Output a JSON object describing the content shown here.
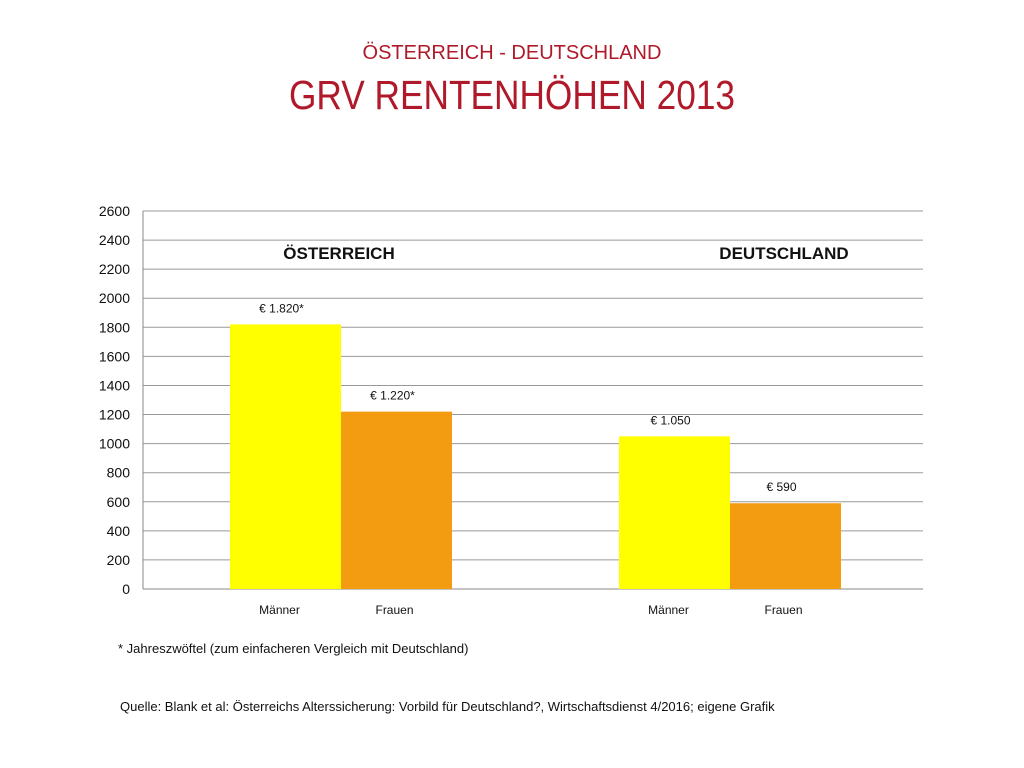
{
  "header": {
    "subtitle": "ÖSTERREICH - DEUTSCHLAND",
    "title": "GRV RENTENHÖHEN 2013"
  },
  "chart_data": {
    "type": "bar",
    "title": "GRV RENTENHÖHEN 2013",
    "subtitle": "ÖSTERREICH - DEUTSCHLAND",
    "groups": [
      "ÖSTERREICH",
      "DEUTSCHLAND"
    ],
    "series": [
      {
        "name": "Männer",
        "color": "#ffff00",
        "values": [
          1820,
          1050
        ],
        "labels": [
          "€ 1.820*",
          "€ 1.050"
        ]
      },
      {
        "name": "Frauen",
        "color": "#f39c12",
        "values": [
          1220,
          590
        ],
        "labels": [
          "€ 1.220*",
          "€ 590"
        ]
      }
    ],
    "ylim": [
      0,
      2600
    ],
    "yticks": [
      0,
      200,
      400,
      600,
      800,
      1000,
      1200,
      1400,
      1600,
      1800,
      2000,
      2200,
      2400,
      2600
    ],
    "xlabel": "",
    "ylabel": "",
    "grid": true,
    "legend": "none"
  },
  "notes": {
    "footnote": "* Jahreszwöftel (zum einfacheren Vergleich mit Deutschland)",
    "source": "Quelle: Blank et al: Österreichs Alterssicherung: Vorbild für Deutschland?, Wirtschaftsdienst 4/2016; eigene Grafik"
  }
}
